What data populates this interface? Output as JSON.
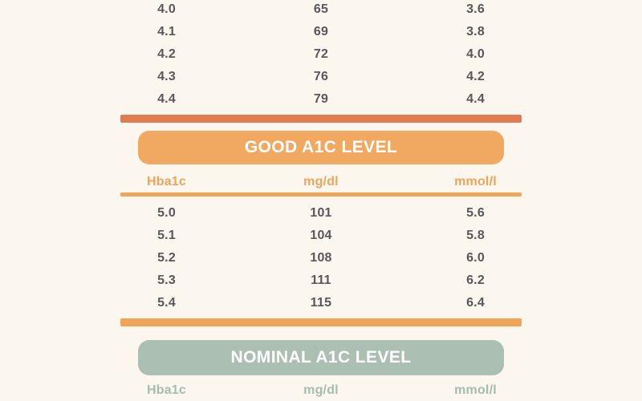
{
  "page": {
    "background_color": "#FBF6EE",
    "data_text_color": "#59575B"
  },
  "colors": {
    "salmon_divider": "#E07C52",
    "orange_banner": "#F1A961",
    "orange_divider": "#EFA457",
    "orange_header_text": "#ECA558",
    "sage_banner": "#ABC0B2",
    "sage_header_text": "#A5BDAE",
    "banner_text": "#FFFFFF"
  },
  "sections": {
    "top_table": {
      "rows": [
        [
          "4.0",
          "65",
          "3.6"
        ],
        [
          "4.1",
          "69",
          "3.8"
        ],
        [
          "4.2",
          "72",
          "4.0"
        ],
        [
          "4.3",
          "76",
          "4.2"
        ],
        [
          "4.4",
          "79",
          "4.4"
        ]
      ]
    },
    "good": {
      "title": "GOOD A1C LEVEL",
      "columns": [
        "Hba1c",
        "mg/dl",
        "mmol/l"
      ],
      "rows": [
        [
          "5.0",
          "101",
          "5.6"
        ],
        [
          "5.1",
          "104",
          "5.8"
        ],
        [
          "5.2",
          "108",
          "6.0"
        ],
        [
          "5.3",
          "111",
          "6.2"
        ],
        [
          "5.4",
          "115",
          "6.4"
        ]
      ]
    },
    "nominal": {
      "title": "NOMINAL A1C LEVEL",
      "columns": [
        "Hba1c",
        "mg/dl",
        "mmol/l"
      ]
    }
  },
  "chart_data": {
    "type": "table",
    "columns": [
      "Hba1c",
      "mg/dl",
      "mmol/l"
    ],
    "sections": [
      {
        "label": "",
        "rows": [
          [
            4.0,
            65,
            3.6
          ],
          [
            4.1,
            69,
            3.8
          ],
          [
            4.2,
            72,
            4.0
          ],
          [
            4.3,
            76,
            4.2
          ],
          [
            4.4,
            79,
            4.4
          ]
        ]
      },
      {
        "label": "GOOD A1C LEVEL",
        "rows": [
          [
            5.0,
            101,
            5.6
          ],
          [
            5.1,
            104,
            5.8
          ],
          [
            5.2,
            108,
            6.0
          ],
          [
            5.3,
            111,
            6.2
          ],
          [
            5.4,
            115,
            6.4
          ]
        ]
      },
      {
        "label": "NOMINAL A1C LEVEL",
        "rows": []
      }
    ]
  }
}
